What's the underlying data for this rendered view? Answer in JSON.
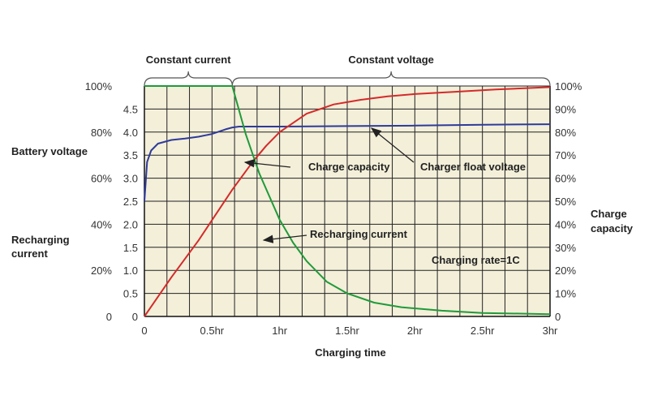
{
  "chart_data": {
    "type": "line",
    "xlabel": "Charging time",
    "x_ticks": [
      "0",
      "0.5hr",
      "1hr",
      "1.5hr",
      "2hr",
      "2.5hr",
      "3hr"
    ],
    "xlim": [
      0,
      3
    ],
    "left_axis_voltage": {
      "label": "Battery voltage",
      "ticks": [
        "2.5",
        "3.0",
        "3.5",
        "4.0",
        "4.5"
      ],
      "values": [
        2.5,
        3.0,
        3.5,
        4.0,
        4.5
      ]
    },
    "left_axis_voltage_lower_ticks": [
      "0",
      "0.5",
      "1.0",
      "1.5",
      "2.0",
      "2.5"
    ],
    "left_axis_current": {
      "label": "Recharging current",
      "ticks": [
        "0",
        "20%",
        "40%",
        "60%",
        "80%",
        "100%"
      ],
      "values": [
        0,
        20,
        40,
        60,
        80,
        100
      ]
    },
    "right_axis": {
      "label": "Charge capacity",
      "ticks": [
        "0",
        "10%",
        "20%",
        "30%",
        "40%",
        "50%",
        "60%",
        "70%",
        "80%",
        "90%",
        "100%"
      ],
      "values": [
        0,
        10,
        20,
        30,
        40,
        50,
        60,
        70,
        80,
        90,
        100
      ]
    },
    "phases": [
      {
        "label": "Constant current",
        "x_range": [
          0,
          0.65
        ]
      },
      {
        "label": "Constant voltage",
        "x_range": [
          0.65,
          3
        ]
      }
    ],
    "series": [
      {
        "name": "Charger float voltage",
        "color": "#2e3a9a",
        "axis": "voltage",
        "x": [
          0,
          0.02,
          0.05,
          0.1,
          0.2,
          0.3,
          0.4,
          0.5,
          0.6,
          0.65,
          0.7,
          1.0,
          1.5,
          2.0,
          2.5,
          3.0
        ],
        "y": [
          2.5,
          3.35,
          3.6,
          3.75,
          3.83,
          3.86,
          3.9,
          3.96,
          4.06,
          4.1,
          4.12,
          4.12,
          4.13,
          4.14,
          4.16,
          4.17
        ]
      },
      {
        "name": "Charge capacity",
        "color": "#d42a2a",
        "axis": "capacity",
        "x": [
          0,
          0.2,
          0.4,
          0.65,
          0.8,
          0.9,
          1.0,
          1.2,
          1.4,
          1.6,
          1.8,
          2.0,
          2.3,
          2.6,
          3.0
        ],
        "y": [
          0,
          17,
          33,
          55,
          67,
          74,
          80,
          88,
          92,
          94,
          95.5,
          96.5,
          97.5,
          98.5,
          99.5
        ]
      },
      {
        "name": "Recharging current",
        "color": "#1f9a3a",
        "axis": "current",
        "x": [
          0,
          0.65,
          0.75,
          0.85,
          1.0,
          1.1,
          1.2,
          1.35,
          1.5,
          1.7,
          1.9,
          2.2,
          2.5,
          3.0
        ],
        "y": [
          100,
          100,
          79,
          62,
          42,
          32,
          24,
          15,
          10,
          6,
          4,
          2.5,
          1.5,
          1
        ]
      }
    ],
    "annotations": [
      "Charge capacity",
      "Charger float voltage",
      "Recharging current",
      "Charging rate=1C"
    ],
    "grid": true
  }
}
